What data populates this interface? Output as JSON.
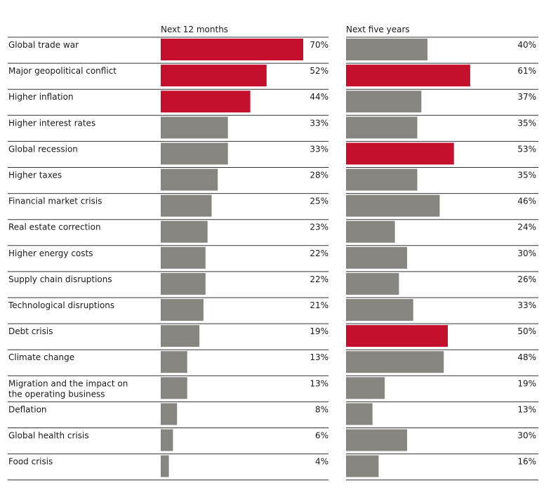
{
  "chart_data": {
    "type": "bar",
    "orientation": "horizontal",
    "xlim": [
      0,
      100
    ],
    "unit": "%",
    "colors": {
      "highlight": "#c4102c",
      "default": "#878580",
      "rule": "#333333"
    },
    "series": [
      {
        "name": "Next 12 months",
        "values": [
          70,
          52,
          44,
          33,
          33,
          28,
          25,
          23,
          22,
          22,
          21,
          19,
          13,
          13,
          8,
          6,
          4
        ],
        "labels": [
          "70%",
          "52%",
          "44%",
          "33%",
          "33%",
          "28%",
          "25%",
          "23%",
          "22%",
          "22%",
          "21%",
          "19%",
          "13%",
          "13%",
          "8%",
          "6%",
          "4%"
        ],
        "highlighted": [
          true,
          true,
          true,
          false,
          false,
          false,
          false,
          false,
          false,
          false,
          false,
          false,
          false,
          false,
          false,
          false,
          false
        ]
      },
      {
        "name": "Next five years",
        "values": [
          40,
          61,
          37,
          35,
          53,
          35,
          46,
          24,
          30,
          26,
          33,
          50,
          48,
          19,
          13,
          30,
          16
        ],
        "labels": [
          "40%",
          "61%",
          "37%",
          "35%",
          "53%",
          "35%",
          "46%",
          "24%",
          "30%",
          "26%",
          "33%",
          "50%",
          "48%",
          "19%",
          "13%",
          "30%",
          "16%"
        ],
        "highlighted": [
          false,
          true,
          false,
          false,
          true,
          false,
          false,
          false,
          false,
          false,
          false,
          true,
          false,
          false,
          false,
          false,
          false
        ]
      }
    ],
    "categories": [
      [
        "Global trade war"
      ],
      [
        "Major geopolitical conflict"
      ],
      [
        "Higher inflation"
      ],
      [
        "Higher interest rates"
      ],
      [
        "Global recession"
      ],
      [
        "Higher taxes"
      ],
      [
        "Financial market crisis"
      ],
      [
        "Real estate correction"
      ],
      [
        "Higher energy costs"
      ],
      [
        "Supply chain disruptions"
      ],
      [
        "Technological disruptions"
      ],
      [
        "Debt crisis"
      ],
      [
        "Climate change"
      ],
      [
        "Migration and the impact on",
        "the operating business"
      ],
      [
        "Deflation"
      ],
      [
        "Global health crisis"
      ],
      [
        "Food crisis"
      ]
    ]
  }
}
